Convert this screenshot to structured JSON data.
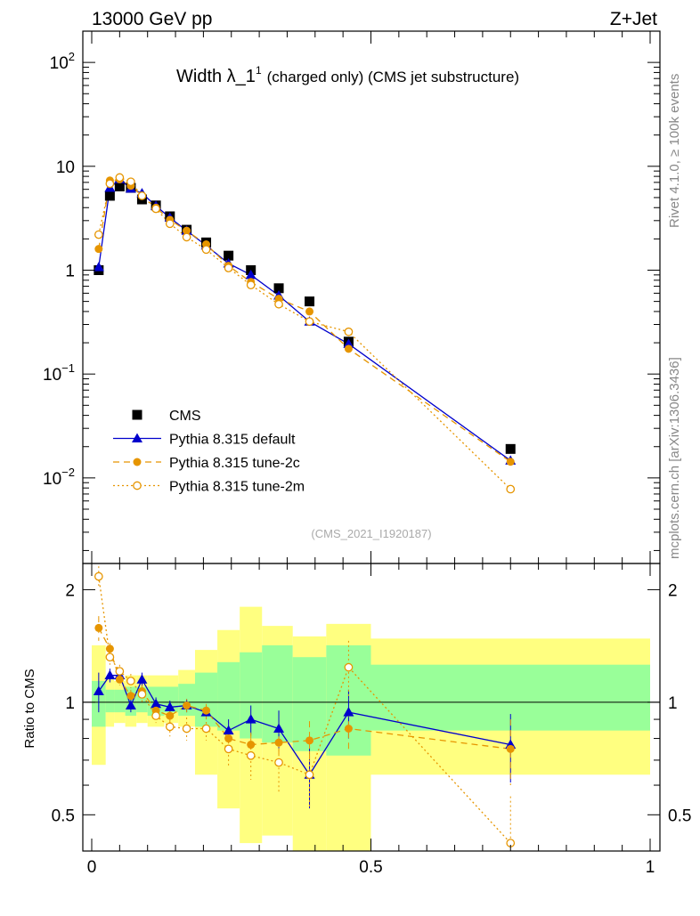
{
  "header": {
    "left_label": "13000 GeV pp",
    "right_label": "Z+Jet"
  },
  "side_labels": {
    "rivet": "Rivet 4.1.0, ≥ 100k events",
    "mcplots": "mcplots.cern.ch [arXiv:1306.3436]"
  },
  "chart_data": [
    {
      "type": "scatter",
      "panel": "main",
      "title": "Width λ_1",
      "title_superscript": "1",
      "subtitle": "(charged only) (CMS jet substructure)",
      "analysis_label": "(CMS_2021_I1920187)",
      "xlabel": "",
      "ylabel": "",
      "yscale": "log",
      "xlim": [
        0,
        1
      ],
      "ylim": [
        0.0015,
        200
      ],
      "y_tick_labels": [
        "10^-2",
        "10^-1",
        "1",
        "10",
        "10^2"
      ],
      "legend_position": "bottom-left",
      "series": [
        {
          "name": "CMS",
          "color": "#000000",
          "marker": "filled-square",
          "x": [
            0.0125,
            0.0325,
            0.05,
            0.07,
            0.09,
            0.115,
            0.14,
            0.17,
            0.205,
            0.245,
            0.285,
            0.335,
            0.39,
            0.46,
            0.75
          ],
          "y": [
            1.0,
            5.2,
            6.4,
            6.2,
            4.8,
            4.2,
            3.3,
            2.45,
            1.85,
            1.38,
            1.0,
            0.67,
            0.5,
            0.205,
            0.019
          ]
        },
        {
          "name": "Pythia 8.315 default",
          "color": "#0000cc",
          "marker": "filled-triangle",
          "line": "solid",
          "x": [
            0.0125,
            0.0325,
            0.05,
            0.07,
            0.09,
            0.115,
            0.14,
            0.17,
            0.205,
            0.245,
            0.285,
            0.335,
            0.39,
            0.46,
            0.75
          ],
          "y": [
            1.07,
            6.2,
            7.5,
            6.1,
            5.5,
            4.15,
            3.2,
            2.4,
            1.73,
            1.16,
            0.9,
            0.57,
            0.32,
            0.195,
            0.0147
          ]
        },
        {
          "name": "Pythia 8.315 tune-2c",
          "color": "#e69500",
          "marker": "filled-circle",
          "line": "dashed",
          "x": [
            0.0125,
            0.0325,
            0.05,
            0.07,
            0.09,
            0.115,
            0.14,
            0.17,
            0.205,
            0.245,
            0.285,
            0.335,
            0.39,
            0.46,
            0.75
          ],
          "y": [
            1.6,
            7.3,
            7.5,
            6.5,
            5.2,
            4.0,
            3.05,
            2.4,
            1.77,
            1.1,
            0.77,
            0.53,
            0.4,
            0.175,
            0.0143
          ]
        },
        {
          "name": "Pythia 8.315 tune-2m",
          "color": "#e69500",
          "marker": "open-circle",
          "line": "dotted",
          "x": [
            0.0125,
            0.0325,
            0.05,
            0.07,
            0.09,
            0.115,
            0.14,
            0.17,
            0.205,
            0.245,
            0.285,
            0.335,
            0.39,
            0.46,
            0.75
          ],
          "y": [
            2.2,
            6.8,
            7.8,
            7.1,
            5.2,
            3.9,
            2.8,
            2.08,
            1.58,
            1.05,
            0.72,
            0.47,
            0.32,
            0.255,
            0.0078
          ]
        }
      ]
    },
    {
      "type": "scatter",
      "panel": "ratio",
      "ylabel": "Ratio to CMS",
      "xlabel": "",
      "xlim": [
        0,
        1
      ],
      "ylim": [
        0.4,
        2.35
      ],
      "y_tick_labels": [
        "0.5",
        "1",
        "2"
      ],
      "x_tick_labels": [
        "0",
        "0.5",
        "1"
      ],
      "reference_line": 1,
      "bands": {
        "edges": [
          0,
          0.025,
          0.04,
          0.06,
          0.08,
          0.1,
          0.13,
          0.155,
          0.185,
          0.225,
          0.265,
          0.305,
          0.36,
          0.42,
          0.5,
          1.0
        ],
        "inner_low": [
          0.86,
          0.94,
          0.94,
          0.92,
          0.94,
          0.92,
          0.94,
          0.92,
          0.86,
          0.84,
          0.8,
          0.78,
          0.74,
          0.72,
          0.84
        ],
        "inner_high": [
          1.14,
          1.08,
          1.08,
          1.1,
          1.1,
          1.1,
          1.1,
          1.12,
          1.2,
          1.28,
          1.36,
          1.42,
          1.32,
          1.42,
          1.26
        ],
        "outer_low": [
          0.68,
          0.86,
          0.88,
          0.86,
          0.88,
          0.86,
          0.88,
          0.86,
          0.64,
          0.52,
          0.42,
          0.44,
          0.4,
          0.4,
          0.64
        ],
        "outer_high": [
          1.42,
          1.16,
          1.14,
          1.18,
          1.18,
          1.18,
          1.18,
          1.22,
          1.38,
          1.56,
          1.8,
          1.6,
          1.5,
          1.62,
          1.48
        ]
      },
      "series": [
        {
          "name": "Pythia 8.315 default",
          "color": "#0000cc",
          "marker": "filled-triangle",
          "line": "solid",
          "x": [
            0.0125,
            0.0325,
            0.05,
            0.07,
            0.09,
            0.115,
            0.14,
            0.17,
            0.205,
            0.245,
            0.285,
            0.335,
            0.39,
            0.46,
            0.75
          ],
          "y": [
            1.07,
            1.18,
            1.18,
            0.98,
            1.15,
            0.99,
            0.97,
            0.98,
            0.94,
            0.84,
            0.9,
            0.85,
            0.64,
            0.94,
            0.77
          ],
          "err": [
            0.13,
            0.05,
            0.05,
            0.04,
            0.05,
            0.04,
            0.04,
            0.04,
            0.04,
            0.06,
            0.08,
            0.1,
            0.12,
            0.14,
            0.16
          ]
        },
        {
          "name": "Pythia 8.315 tune-2c",
          "color": "#e69500",
          "marker": "filled-circle",
          "line": "dashed",
          "x": [
            0.0125,
            0.0325,
            0.05,
            0.07,
            0.09,
            0.115,
            0.14,
            0.17,
            0.205,
            0.245,
            0.285,
            0.335,
            0.39,
            0.46,
            0.75
          ],
          "y": [
            1.58,
            1.39,
            1.15,
            1.04,
            1.07,
            0.95,
            0.92,
            0.98,
            0.95,
            0.8,
            0.77,
            0.78,
            0.79,
            0.85,
            0.75
          ],
          "err": [
            0.12,
            0.05,
            0.04,
            0.04,
            0.04,
            0.04,
            0.04,
            0.04,
            0.04,
            0.06,
            0.06,
            0.08,
            0.1,
            0.1,
            0.15
          ]
        },
        {
          "name": "Pythia 8.315 tune-2m",
          "color": "#e69500",
          "marker": "open-circle",
          "line": "dotted",
          "x": [
            0.0125,
            0.0325,
            0.05,
            0.07,
            0.09,
            0.115,
            0.14,
            0.17,
            0.205,
            0.245,
            0.285,
            0.335,
            0.39,
            0.46,
            0.75
          ],
          "y": [
            2.17,
            1.32,
            1.21,
            1.14,
            1.05,
            0.92,
            0.86,
            0.85,
            0.85,
            0.75,
            0.72,
            0.69,
            0.64,
            1.24,
            0.42
          ],
          "err": [
            0.14,
            0.06,
            0.05,
            0.05,
            0.05,
            0.04,
            0.05,
            0.06,
            0.06,
            0.08,
            0.1,
            0.12,
            0.12,
            0.22,
            0.14
          ]
        }
      ]
    }
  ]
}
